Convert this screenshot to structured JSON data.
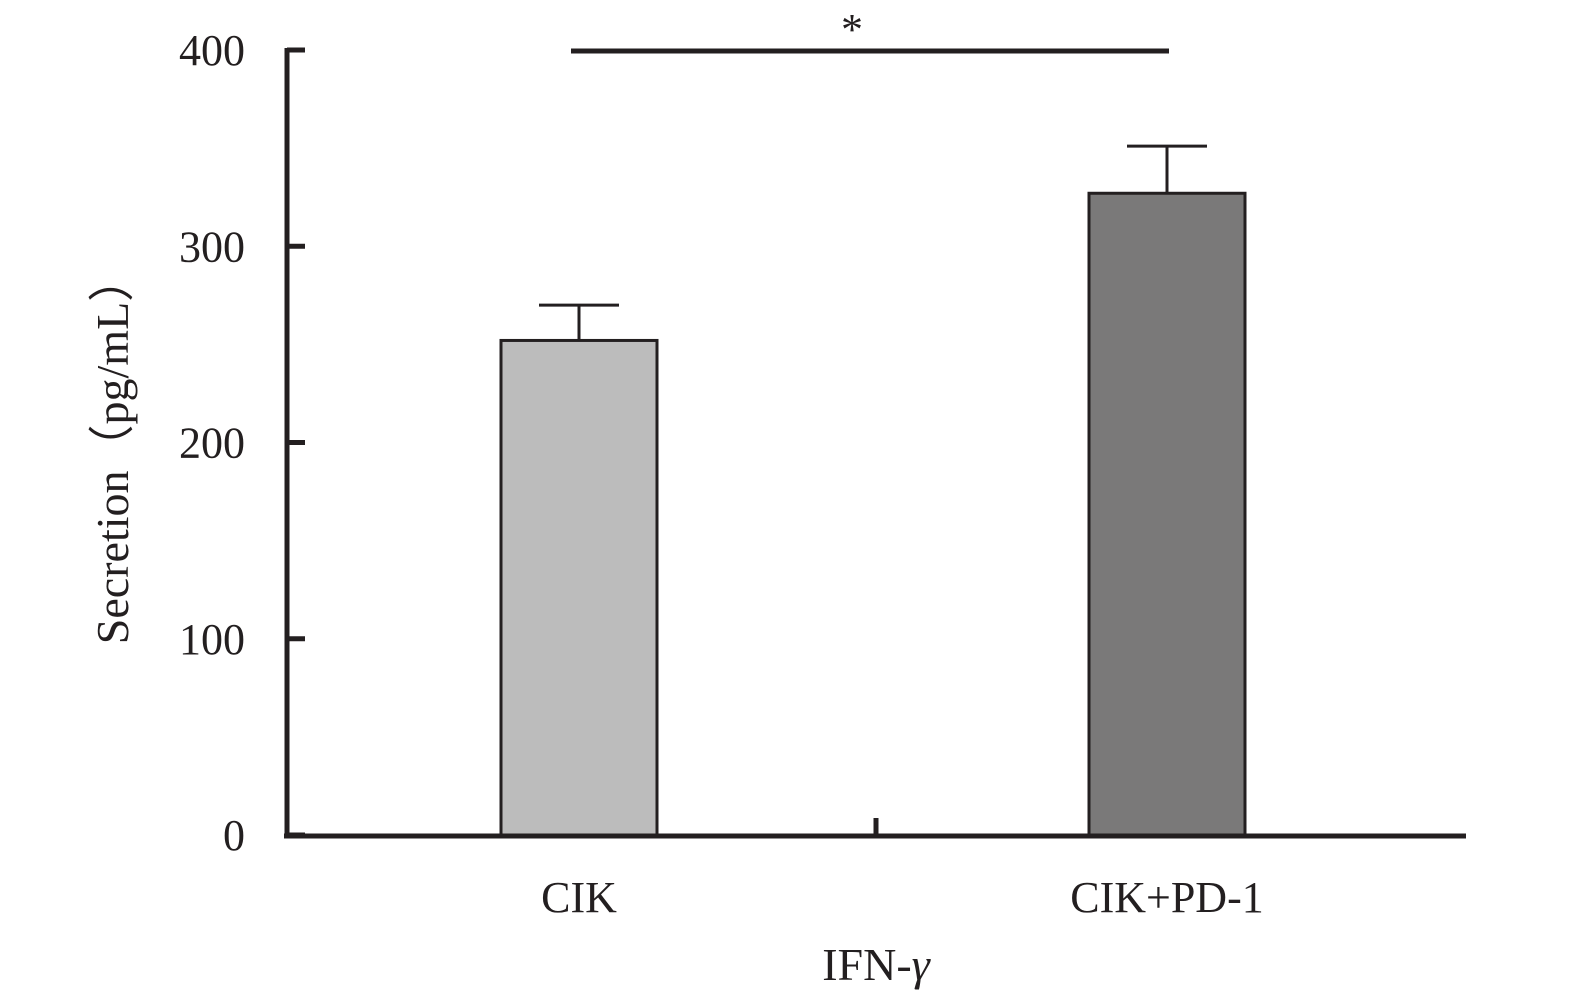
{
  "chart_data": {
    "type": "bar",
    "categories": [
      "CIK",
      "CIK+PD-1"
    ],
    "values": [
      252,
      327
    ],
    "errors": [
      18,
      24
    ],
    "colors": [
      "#bcbcbc",
      "#7a7979"
    ],
    "ylim": [
      0,
      400
    ],
    "yticks": [
      0,
      100,
      200,
      300,
      400
    ],
    "ylabel": "Secretion（pg/mL）",
    "xlabel_text": "IFN-",
    "xlabel_symbol": "γ",
    "significance": {
      "label": "*",
      "between": [
        "CIK",
        "CIK+PD-1"
      ]
    },
    "grid": false
  }
}
